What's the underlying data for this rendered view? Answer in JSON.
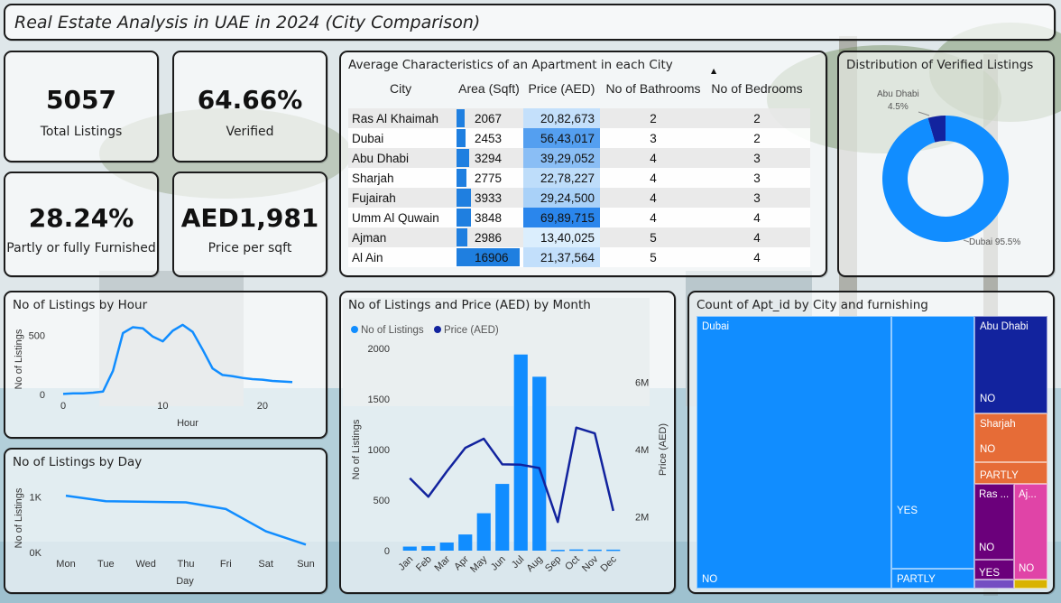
{
  "title": "Real Estate Analysis in UAE in 2024 (City Comparison)",
  "kpis": [
    {
      "value": "5057",
      "label": "Total Listings"
    },
    {
      "value": "64.66%",
      "label": "Verified"
    },
    {
      "value": "28.24%",
      "label": "Partly or fully Furnished"
    },
    {
      "value": "AED1,981",
      "label": "Price per sqft"
    }
  ],
  "table": {
    "title": "Average Characteristics of an Apartment in each City",
    "columns": [
      "City",
      "Area (Sqft)",
      "Price (AED)",
      "No of Bathrooms",
      "No of Bedrooms"
    ],
    "rows": [
      {
        "city": "Ras Al Khaimah",
        "area": 2067,
        "area_label": "2067",
        "price": 2082673,
        "price_label": "20,82,673",
        "bath": "2",
        "bed": "2"
      },
      {
        "city": "Dubai",
        "area": 2453,
        "area_label": "2453",
        "price": 5643017,
        "price_label": "56,43,017",
        "bath": "3",
        "bed": "2"
      },
      {
        "city": "Abu Dhabi",
        "area": 3294,
        "area_label": "3294",
        "price": 3929052,
        "price_label": "39,29,052",
        "bath": "4",
        "bed": "3"
      },
      {
        "city": "Sharjah",
        "area": 2775,
        "area_label": "2775",
        "price": 2278227,
        "price_label": "22,78,227",
        "bath": "4",
        "bed": "3"
      },
      {
        "city": "Fujairah",
        "area": 3933,
        "area_label": "3933",
        "price": 2924500,
        "price_label": "29,24,500",
        "bath": "4",
        "bed": "3"
      },
      {
        "city": "Umm Al Quwain",
        "area": 3848,
        "area_label": "3848",
        "price": 6989715,
        "price_label": "69,89,715",
        "bath": "4",
        "bed": "4"
      },
      {
        "city": "Ajman",
        "area": 2986,
        "area_label": "2986",
        "price": 1340025,
        "price_label": "13,40,025",
        "bath": "5",
        "bed": "4"
      },
      {
        "city": "Al Ain",
        "area": 16906,
        "area_label": "16906",
        "price": 2137564,
        "price_label": "21,37,564",
        "bath": "5",
        "bed": "4"
      }
    ],
    "colors": {
      "area_bar": "#1f7fe0",
      "price_low": "#dbeefd",
      "price_high": "#2a86ec"
    }
  },
  "donut": {
    "title": "Distribution of Verified Listings",
    "slices": [
      {
        "name": "Dubai",
        "pct": 95.5,
        "label": "Dubai 95.5%",
        "color": "#118dff"
      },
      {
        "name": "Abu Dhabi",
        "pct": 4.5,
        "label_name": "Abu Dhabi",
        "label_pct": "4.5%",
        "color": "#12239e"
      }
    ]
  },
  "hour_chart": {
    "title": "No of Listings by Hour",
    "ylabel": "No of Listings",
    "xlabel": "Hour",
    "x_ticks": [
      "0",
      "10",
      "20"
    ],
    "y_ticks": [
      "0",
      "500"
    ],
    "color": "#118dff"
  },
  "chart_data": [
    {
      "type": "line",
      "title": "No of Listings by Hour",
      "xlabel": "Hour",
      "ylabel": "No of Listings",
      "x": [
        0,
        1,
        2,
        3,
        4,
        5,
        6,
        7,
        8,
        9,
        10,
        11,
        12,
        13,
        14,
        15,
        16,
        17,
        18,
        19,
        20,
        21,
        22,
        23
      ],
      "values": [
        5,
        10,
        10,
        15,
        25,
        200,
        520,
        570,
        560,
        490,
        450,
        540,
        590,
        530,
        380,
        220,
        165,
        155,
        140,
        130,
        125,
        115,
        110,
        105
      ],
      "ylim": [
        0,
        650
      ]
    },
    {
      "type": "line",
      "title": "No of Listings by Day",
      "xlabel": "Day",
      "ylabel": "No of Listings",
      "categories": [
        "Mon",
        "Tue",
        "Wed",
        "Thu",
        "Fri",
        "Sat",
        "Sun"
      ],
      "values": [
        1020,
        920,
        910,
        900,
        780,
        380,
        140
      ],
      "ylim": [
        0,
        1200
      ]
    },
    {
      "type": "bar",
      "title": "No of Listings and Price (AED) by Month",
      "categories": [
        "Jan",
        "Feb",
        "Mar",
        "Apr",
        "May",
        "Jun",
        "Jul",
        "Aug",
        "Sep",
        "Oct",
        "Nov",
        "Dec"
      ],
      "series": [
        {
          "name": "No of Listings",
          "type": "bar",
          "values": [
            40,
            45,
            80,
            160,
            370,
            660,
            1940,
            1720,
            8,
            12,
            10,
            10
          ],
          "color": "#118dff"
        },
        {
          "name": "Price (AED)",
          "type": "line",
          "axis": "right",
          "values": [
            3150000,
            2600000,
            3350000,
            4050000,
            4320000,
            3560000,
            3550000,
            3450000,
            1850000,
            4650000,
            4480000,
            2180000
          ],
          "color": "#12239e"
        }
      ],
      "ylabel": "No of Listings",
      "y2label": "Price (AED)",
      "ylim": [
        0,
        2000
      ],
      "y2lim": [
        1000000,
        7000000
      ]
    },
    {
      "type": "treemap",
      "title": "Count of Apt_id by City and furnishing",
      "cities": [
        {
          "name": "Dubai",
          "label": "Dubai",
          "color": "#118dff",
          "segments": [
            "NO",
            "YES",
            "PARTLY"
          ]
        },
        {
          "name": "Abu Dhabi",
          "label": "Abu Dhabi",
          "color": "#12239e",
          "segments": [
            "NO"
          ]
        },
        {
          "name": "Sharjah",
          "label": "Sharjah",
          "color": "#e66c37",
          "segments": [
            "NO",
            "PARTLY"
          ]
        },
        {
          "name": "Ras Al Khaimah",
          "label": "Ras ...",
          "color": "#6b007b",
          "segments": [
            "NO",
            "YES"
          ]
        },
        {
          "name": "Ajman",
          "label": "Aj...",
          "color": "#e044a7",
          "segments": [
            "NO"
          ]
        }
      ]
    }
  ],
  "day_chart": {
    "title": "No of Listings by Day",
    "ylabel": "No of Listings",
    "xlabel": "Day",
    "y_ticks": [
      "0K",
      "1K"
    ],
    "color": "#118dff"
  },
  "month_chart": {
    "title": "No of Listings and Price (AED) by Month",
    "legend": [
      "No of Listings",
      "Price (AED)"
    ],
    "ylabel": "No of Listings",
    "y2label": "Price (AED)",
    "y_ticks": [
      "0",
      "500",
      "1000",
      "1500",
      "2000"
    ],
    "y2_ticks": [
      "2M",
      "4M",
      "6M"
    ]
  },
  "treemap": {
    "title": "Count of Apt_id by City and furnishing"
  }
}
